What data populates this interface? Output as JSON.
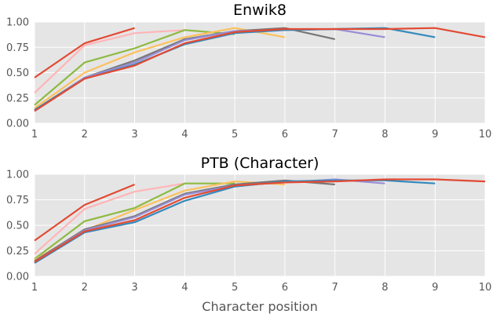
{
  "chart_data": [
    {
      "type": "line",
      "title": "Enwik8",
      "xlabel": "",
      "ylabel": "",
      "xlim": [
        1,
        10
      ],
      "ylim": [
        0,
        1.0
      ],
      "xticks": [
        "1",
        "2",
        "3",
        "4",
        "5",
        "6",
        "7",
        "8",
        "9",
        "10"
      ],
      "yticks": [
        "0.00",
        "0.25",
        "0.50",
        "0.75",
        "1.00"
      ],
      "grid": true,
      "series": [
        {
          "color": "#E24A33",
          "x": [
            1,
            2,
            3
          ],
          "y": [
            0.45,
            0.79,
            0.94
          ]
        },
        {
          "color": "#FFB5B8",
          "x": [
            1,
            2,
            3,
            4
          ],
          "y": [
            0.3,
            0.77,
            0.89,
            0.92
          ]
        },
        {
          "color": "#8EBA42",
          "x": [
            1,
            2,
            3,
            4,
            5
          ],
          "y": [
            0.18,
            0.6,
            0.74,
            0.92,
            0.88
          ]
        },
        {
          "color": "#FBC15E",
          "x": [
            1,
            2,
            3,
            4,
            5,
            6
          ],
          "y": [
            0.15,
            0.5,
            0.7,
            0.85,
            0.94,
            0.85
          ]
        },
        {
          "color": "#777777",
          "x": [
            1,
            2,
            3,
            4,
            5,
            6,
            7
          ],
          "y": [
            0.13,
            0.45,
            0.62,
            0.83,
            0.91,
            0.94,
            0.83
          ]
        },
        {
          "color": "#988ED5",
          "x": [
            1,
            2,
            3,
            4,
            5,
            6,
            7,
            8
          ],
          "y": [
            0.12,
            0.45,
            0.6,
            0.82,
            0.91,
            0.92,
            0.93,
            0.85
          ]
        },
        {
          "color": "#348ABD",
          "x": [
            1,
            2,
            3,
            4,
            5,
            6,
            7,
            8,
            9
          ],
          "y": [
            0.13,
            0.44,
            0.58,
            0.78,
            0.89,
            0.92,
            0.93,
            0.94,
            0.85
          ]
        },
        {
          "color": "#E24A33",
          "x": [
            1,
            2,
            3,
            4,
            5,
            6,
            7,
            8,
            9,
            10
          ],
          "y": [
            0.12,
            0.44,
            0.57,
            0.79,
            0.9,
            0.93,
            0.93,
            0.93,
            0.94,
            0.85
          ]
        }
      ]
    },
    {
      "type": "line",
      "title": "PTB (Character)",
      "xlabel": "Character position",
      "ylabel": "",
      "xlim": [
        1,
        10
      ],
      "ylim": [
        0,
        1.0
      ],
      "xticks": [
        "1",
        "2",
        "3",
        "4",
        "5",
        "6",
        "7",
        "8",
        "9",
        "10"
      ],
      "yticks": [
        "0.00",
        "0.25",
        "0.50",
        "0.75",
        "1.00"
      ],
      "grid": true,
      "series": [
        {
          "color": "#E24A33",
          "x": [
            1,
            2,
            3
          ],
          "y": [
            0.35,
            0.7,
            0.9
          ]
        },
        {
          "color": "#FFB5B8",
          "x": [
            1,
            2,
            3,
            4
          ],
          "y": [
            0.22,
            0.66,
            0.83,
            0.91
          ]
        },
        {
          "color": "#8EBA42",
          "x": [
            1,
            2,
            3,
            4,
            5
          ],
          "y": [
            0.17,
            0.54,
            0.67,
            0.91,
            0.91
          ]
        },
        {
          "color": "#FBC15E",
          "x": [
            1,
            2,
            3,
            4,
            5,
            6
          ],
          "y": [
            0.16,
            0.45,
            0.65,
            0.84,
            0.93,
            0.9
          ]
        },
        {
          "color": "#777777",
          "x": [
            1,
            2,
            3,
            4,
            5,
            6,
            7
          ],
          "y": [
            0.15,
            0.46,
            0.59,
            0.81,
            0.9,
            0.94,
            0.9
          ]
        },
        {
          "color": "#988ED5",
          "x": [
            1,
            2,
            3,
            4,
            5,
            6,
            7,
            8
          ],
          "y": [
            0.14,
            0.45,
            0.58,
            0.8,
            0.89,
            0.92,
            0.95,
            0.91
          ]
        },
        {
          "color": "#348ABD",
          "x": [
            1,
            2,
            3,
            4,
            5,
            6,
            7,
            8,
            9
          ],
          "y": [
            0.13,
            0.43,
            0.53,
            0.74,
            0.88,
            0.93,
            0.94,
            0.94,
            0.91
          ]
        },
        {
          "color": "#E24A33",
          "x": [
            1,
            2,
            3,
            4,
            5,
            6,
            7,
            8,
            9,
            10
          ],
          "y": [
            0.14,
            0.44,
            0.55,
            0.77,
            0.89,
            0.92,
            0.93,
            0.95,
            0.95,
            0.93
          ]
        }
      ]
    }
  ]
}
